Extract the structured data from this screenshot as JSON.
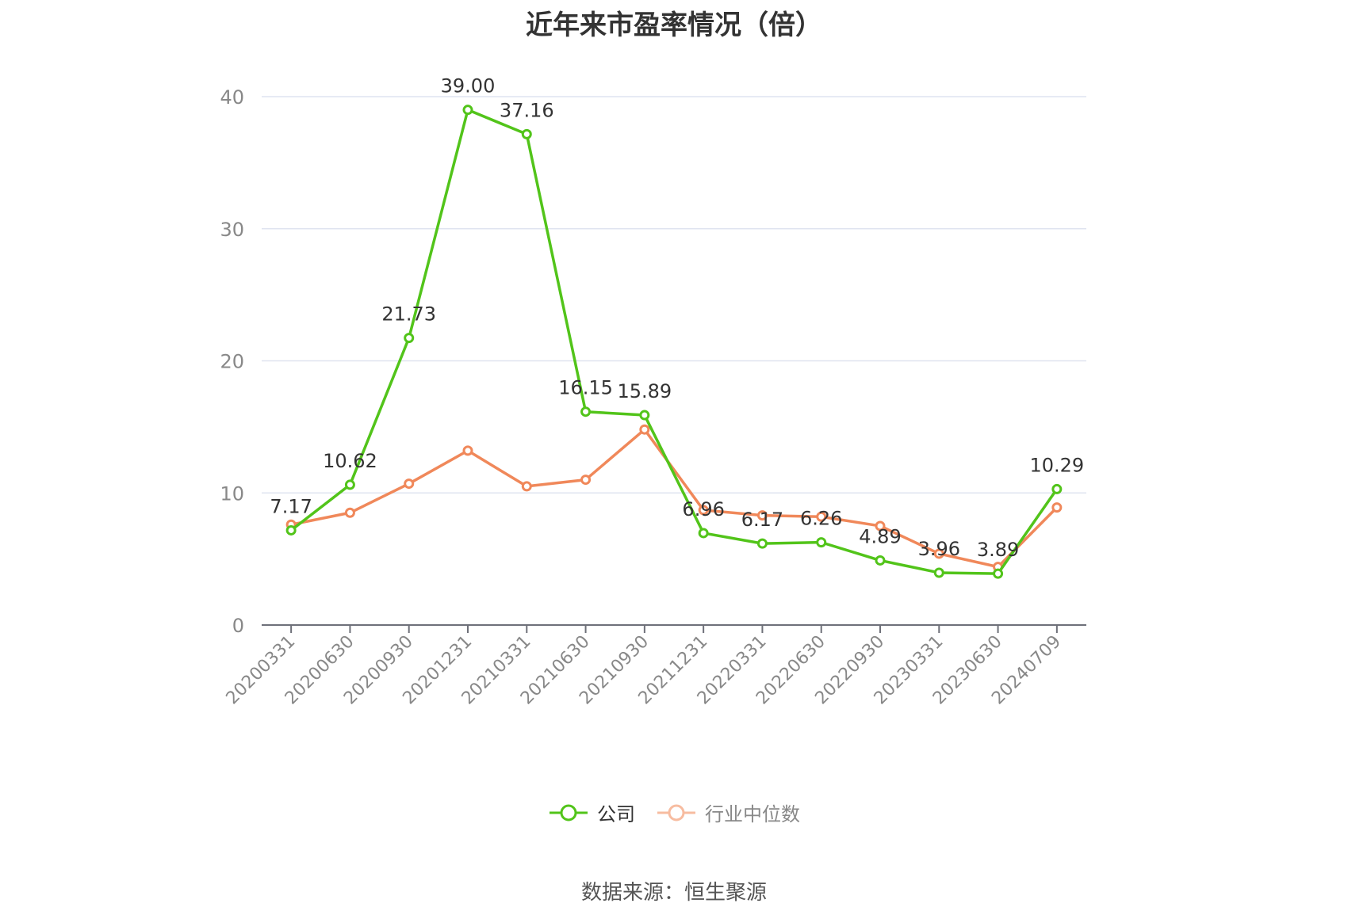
{
  "title": "近年来市盈率情况（倍）",
  "source": "数据来源：恒生聚源",
  "colors": {
    "company": "#52c41a",
    "industry": "#f0885a",
    "grid": "#dfe4f0",
    "axis": "#6e7079",
    "tick_text": "#888888",
    "label_text": "#333333"
  },
  "chart_data": {
    "type": "line",
    "title": "近年来市盈率情况（倍）",
    "xlabel": "",
    "ylabel": "",
    "ylim": [
      0,
      40
    ],
    "y_ticks": [
      0,
      10,
      20,
      30,
      40
    ],
    "grid": true,
    "legend_position": "bottom-center",
    "categories": [
      "20200331",
      "20200630",
      "20200930",
      "20201231",
      "20210331",
      "20210630",
      "20210930",
      "20211231",
      "20220331",
      "20220630",
      "20220930",
      "20230331",
      "20230630",
      "20240709"
    ],
    "series": [
      {
        "name": "公司",
        "values": [
          7.17,
          10.62,
          21.73,
          39.0,
          37.16,
          16.15,
          15.89,
          6.96,
          6.17,
          6.26,
          4.89,
          3.96,
          3.89,
          10.29
        ],
        "labels": [
          "7.17",
          "10.62",
          "21.73",
          "39.00",
          "37.16",
          "16.15",
          "15.89",
          "6.96",
          "6.17",
          "6.26",
          "4.89",
          "3.96",
          "3.89",
          "10.29"
        ]
      },
      {
        "name": "行业中位数",
        "values": [
          7.6,
          8.5,
          10.7,
          13.2,
          10.5,
          11.0,
          14.8,
          8.7,
          8.3,
          8.2,
          7.5,
          5.4,
          4.4,
          8.9
        ]
      }
    ]
  }
}
